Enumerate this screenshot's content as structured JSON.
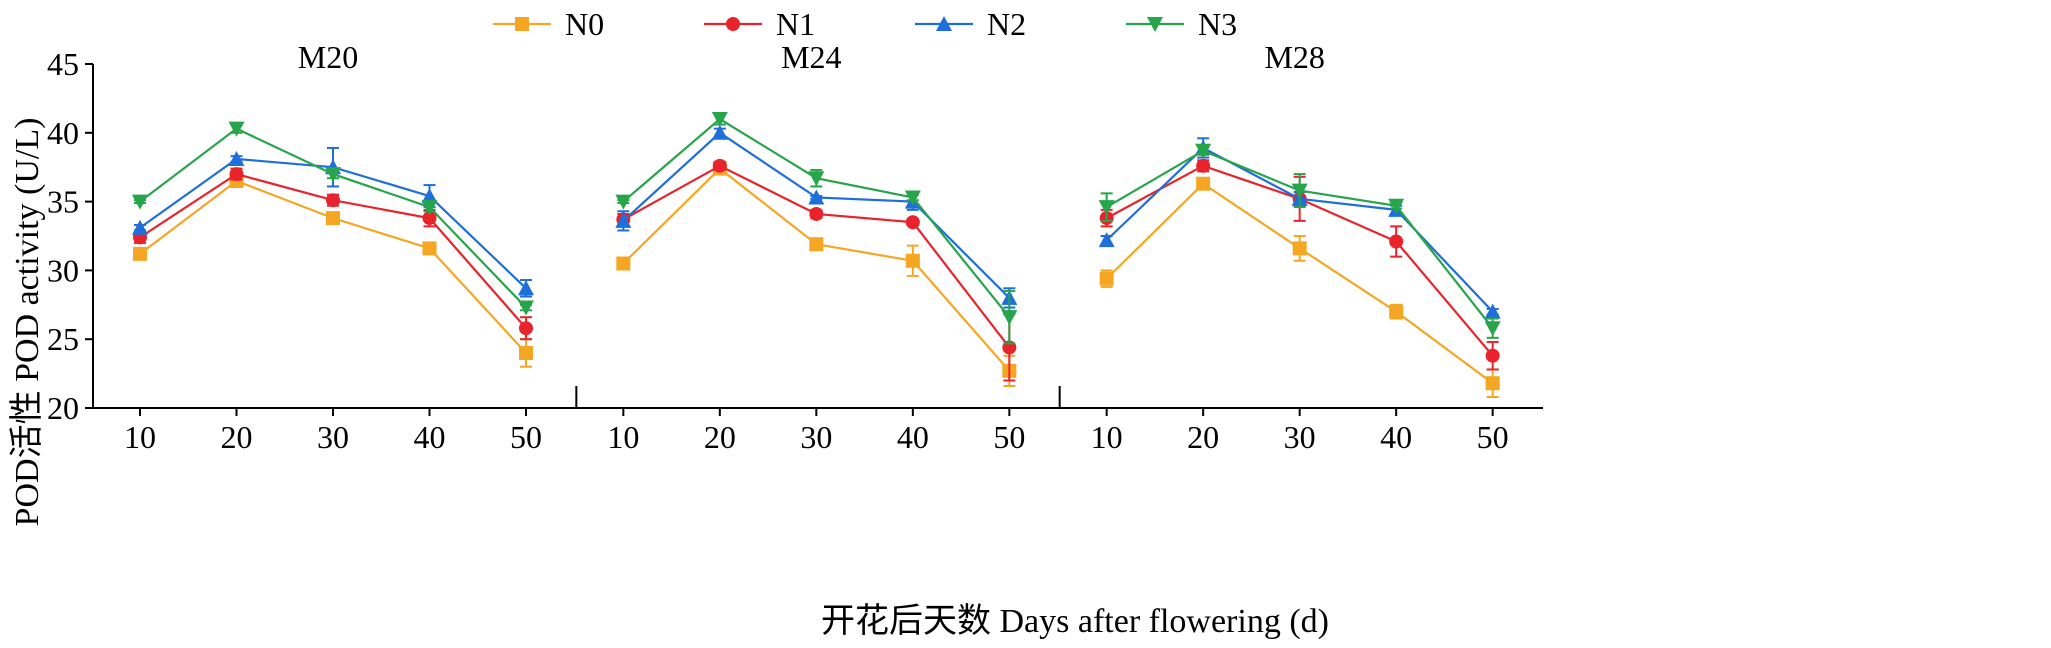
{
  "chart_data": {
    "type": "line",
    "ylabel": "POD活性 POD activity (U/L)",
    "xlabel": "开花后天数 Days after flowering (d)",
    "ylim": [
      20,
      45
    ],
    "yticks": [
      20,
      25,
      30,
      35,
      40,
      45
    ],
    "x": [
      10,
      20,
      30,
      40,
      50
    ],
    "legend_position": "top-center",
    "grid": false,
    "colors": {
      "N0": "#f5a623",
      "N1": "#e8232b",
      "N2": "#1e6fd9",
      "N3": "#27a54a"
    },
    "markers": {
      "N0": "square",
      "N1": "circle",
      "N2": "triangle-up",
      "N3": "triangle-down"
    },
    "legend": [
      "N0",
      "N1",
      "N2",
      "N3"
    ],
    "panels": [
      {
        "title": "M20",
        "series": [
          {
            "name": "N0",
            "values": [
              31.2,
              36.5,
              33.8,
              31.6,
              24.0
            ],
            "errors": [
              0.2,
              0.3,
              0.2,
              0.3,
              1.0
            ]
          },
          {
            "name": "N1",
            "values": [
              32.4,
              37.0,
              35.1,
              33.8,
              25.8
            ],
            "errors": [
              0.4,
              0.4,
              0.4,
              0.6,
              0.8
            ]
          },
          {
            "name": "N2",
            "values": [
              33.1,
              38.1,
              37.5,
              35.4,
              28.7
            ],
            "errors": [
              0.2,
              0.2,
              1.4,
              0.8,
              0.6
            ]
          },
          {
            "name": "N3",
            "values": [
              35.0,
              40.3,
              37.0,
              34.6,
              27.3
            ],
            "errors": [
              0.1,
              0.3,
              0.3,
              0.3,
              0.2
            ]
          }
        ]
      },
      {
        "title": "M24",
        "series": [
          {
            "name": "N0",
            "values": [
              30.5,
              37.4,
              31.9,
              30.7,
              22.7
            ],
            "errors": [
              0.1,
              0.2,
              0.3,
              1.1,
              1.1
            ]
          },
          {
            "name": "N1",
            "values": [
              33.7,
              37.6,
              34.1,
              33.5,
              24.4
            ],
            "errors": [
              0.4,
              0.3,
              0.3,
              0.2,
              2.4
            ]
          },
          {
            "name": "N2",
            "values": [
              33.6,
              40.0,
              35.3,
              35.0,
              28.0
            ],
            "errors": [
              0.7,
              0.3,
              0.1,
              0.6,
              0.7
            ]
          },
          {
            "name": "N3",
            "values": [
              35.0,
              41.0,
              36.7,
              35.3,
              26.6
            ],
            "errors": [
              0.1,
              0.4,
              0.6,
              0.2,
              1.9
            ]
          }
        ]
      },
      {
        "title": "M28",
        "series": [
          {
            "name": "N0",
            "values": [
              29.4,
              36.3,
              31.6,
              27.0,
              21.8
            ],
            "errors": [
              0.6,
              0.2,
              0.9,
              0.5,
              1.0
            ]
          },
          {
            "name": "N1",
            "values": [
              33.8,
              37.6,
              35.2,
              32.1,
              23.8
            ],
            "errors": [
              0.6,
              0.4,
              1.6,
              1.1,
              1.0
            ]
          },
          {
            "name": "N2",
            "values": [
              32.2,
              38.9,
              35.2,
              34.4,
              27.0
            ],
            "errors": [
              0.3,
              0.7,
              0.5,
              0.3,
              0.2
            ]
          },
          {
            "name": "N3",
            "values": [
              34.6,
              38.7,
              35.8,
              34.7,
              25.8
            ],
            "errors": [
              1.0,
              0.3,
              1.2,
              0.2,
              0.7
            ]
          }
        ]
      }
    ]
  }
}
